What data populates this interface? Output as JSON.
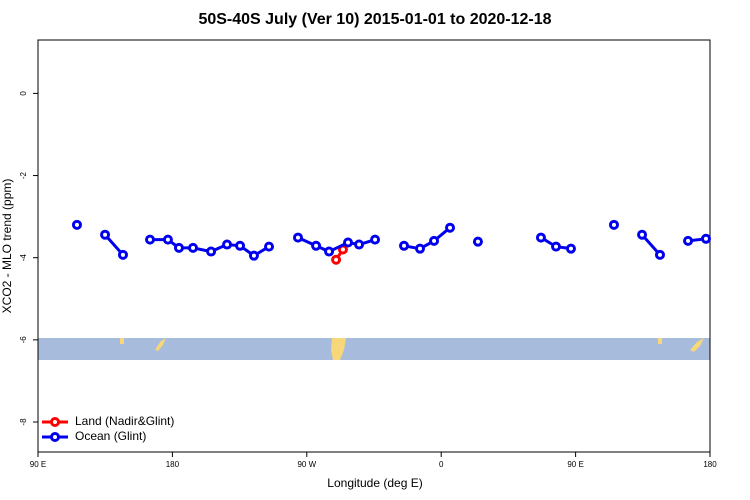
{
  "chart_data": {
    "type": "line",
    "title": "50S-40S July (Ver 10)   2015-01-01 to 2020-12-18",
    "x_label": "Longitude (deg E)",
    "y_label": "XCO2 - MLO trend (ppm)",
    "xlim": [
      90,
      540
    ],
    "ylim": [
      -8.73,
      1.3
    ],
    "xticks": [
      {
        "value": 90,
        "label": "90 E"
      },
      {
        "value": 180,
        "label": "180"
      },
      {
        "value": 270,
        "label": "90 W"
      },
      {
        "value": 360,
        "label": "0"
      },
      {
        "value": 450,
        "label": "90 E"
      },
      {
        "value": 540,
        "label": "180"
      }
    ],
    "yticks": [
      0,
      -2,
      -4,
      -6,
      -8
    ],
    "legend": "bottom-left",
    "series": [
      {
        "name": "Land (Nadir&Glint)",
        "color": "#ff0000",
        "x": [
          289.6,
          294.2
        ],
        "values": [
          -4.05,
          -3.8
        ]
      },
      {
        "name": "Ocean (Glint)",
        "color": "#0000ee",
        "x": [
          116.1,
          null,
          134.9,
          146.9,
          null,
          165,
          177,
          184.4,
          193.8,
          205.9,
          216.6,
          225.3,
          234.6,
          244.7,
          null,
          264.1,
          276.2,
          284.9,
          297.6,
          305,
          315.7,
          null,
          335.1,
          345.8,
          355.2,
          365.9,
          null,
          384.6,
          null,
          426.8,
          436.9,
          446.9,
          null,
          475.7,
          null,
          494.5,
          506.5,
          null,
          525.3,
          537.3
        ],
        "values": [
          -3.2,
          null,
          -3.44,
          -3.93,
          null,
          -3.56,
          -3.56,
          -3.76,
          -3.76,
          -3.85,
          -3.68,
          -3.71,
          -3.95,
          -3.73,
          null,
          -3.51,
          -3.71,
          -3.85,
          -3.63,
          -3.68,
          -3.56,
          null,
          -3.71,
          -3.78,
          -3.59,
          -3.27,
          null,
          -3.61,
          null,
          -3.51,
          -3.73,
          -3.78,
          null,
          -3.2,
          null,
          -3.44,
          -3.93,
          null,
          -3.59,
          -3.54
        ]
      }
    ]
  }
}
